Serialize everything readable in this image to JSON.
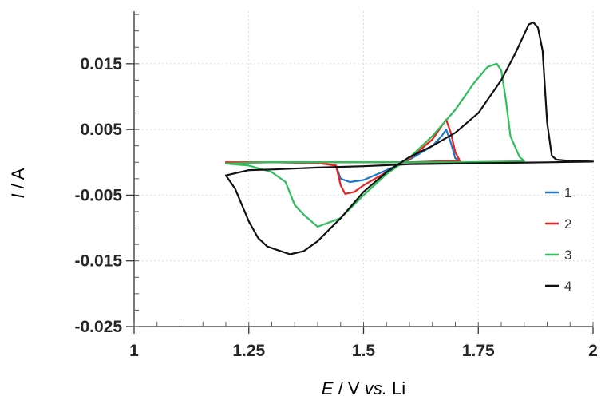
{
  "chart_data": {
    "type": "line",
    "title": "",
    "xlabel": {
      "var": "E",
      "rest": " / V ",
      "italic": "vs.",
      "tail": " Li"
    },
    "ylabel": {
      "var": "I",
      "rest": " / A"
    },
    "xlim": [
      1,
      2
    ],
    "ylim": [
      -0.025,
      0.023
    ],
    "x_ticks": [
      1,
      1.25,
      1.5,
      1.75,
      2
    ],
    "x_tick_labels": [
      "1",
      "1.25",
      "1.5",
      "1.75",
      "2"
    ],
    "y_ticks": [
      0.015,
      0.005,
      -0.005,
      -0.015,
      -0.025
    ],
    "y_tick_labels": [
      "0.015",
      "0.005",
      "-0.005",
      "-0.015",
      "-0.025"
    ],
    "grid": true,
    "legend_position": "right",
    "series": [
      {
        "name": "1",
        "color": "#1f77c9",
        "x": [
          1.2,
          1.3,
          1.4,
          1.44,
          1.45,
          1.47,
          1.5,
          1.55,
          1.6,
          1.65,
          1.67,
          1.68,
          1.69,
          1.7,
          1.71,
          1.65,
          1.6,
          1.55,
          1.5,
          1.47,
          1.45,
          1.44,
          1.4,
          1.3,
          1.2
        ],
        "y": [
          0.0,
          0.0,
          -0.0001,
          -0.0005,
          -0.0025,
          -0.003,
          -0.0027,
          -0.0012,
          0.0004,
          0.0025,
          0.004,
          0.005,
          0.003,
          0.0006,
          0.0002,
          0.0001,
          0.0,
          0.0,
          0.0,
          0.0,
          0.0,
          0.0,
          0.0,
          0.0,
          0.0
        ]
      },
      {
        "name": "2",
        "color": "#ef2020",
        "x": [
          1.2,
          1.3,
          1.4,
          1.44,
          1.45,
          1.46,
          1.48,
          1.5,
          1.55,
          1.6,
          1.65,
          1.67,
          1.68,
          1.69,
          1.7,
          1.71,
          1.65,
          1.6,
          1.5,
          1.46,
          1.4,
          1.3,
          1.2
        ],
        "y": [
          0.0,
          0.0,
          -0.0001,
          -0.0005,
          -0.0035,
          -0.0048,
          -0.0045,
          -0.0035,
          -0.0015,
          0.0005,
          0.0035,
          0.0055,
          0.0065,
          0.0045,
          0.0015,
          0.0002,
          0.0001,
          0.0,
          0.0,
          0.0,
          0.0,
          0.0,
          0.0
        ]
      },
      {
        "name": "3",
        "color": "#2cbf5a",
        "x": [
          1.2,
          1.25,
          1.3,
          1.33,
          1.35,
          1.37,
          1.4,
          1.45,
          1.5,
          1.55,
          1.6,
          1.65,
          1.7,
          1.74,
          1.77,
          1.79,
          1.8,
          1.81,
          1.82,
          1.84,
          1.85,
          1.8,
          1.7,
          1.6,
          1.5,
          1.4,
          1.3,
          1.2
        ],
        "y": [
          -0.0002,
          -0.0005,
          -0.0015,
          -0.003,
          -0.0065,
          -0.008,
          -0.0098,
          -0.0085,
          -0.005,
          -0.0018,
          0.0007,
          0.004,
          0.008,
          0.012,
          0.0145,
          0.015,
          0.014,
          0.0095,
          0.004,
          0.0008,
          0.0002,
          0.0001,
          0.0,
          0.0,
          0.0,
          0.0,
          0.0,
          -0.0002
        ]
      },
      {
        "name": "4",
        "color": "#111111",
        "x": [
          1.2,
          1.22,
          1.25,
          1.27,
          1.29,
          1.31,
          1.34,
          1.37,
          1.4,
          1.45,
          1.5,
          1.55,
          1.6,
          1.65,
          1.7,
          1.75,
          1.8,
          1.83,
          1.85,
          1.86,
          1.87,
          1.88,
          1.89,
          1.9,
          1.91,
          1.92,
          1.95,
          2.0,
          1.9,
          1.8,
          1.7,
          1.6,
          1.5,
          1.4,
          1.3,
          1.25,
          1.2
        ],
        "y": [
          -0.002,
          -0.004,
          -0.009,
          -0.0115,
          -0.0128,
          -0.0133,
          -0.014,
          -0.0135,
          -0.012,
          -0.0085,
          -0.0045,
          -0.0015,
          0.0008,
          0.0025,
          0.0045,
          0.0075,
          0.0125,
          0.0165,
          0.0195,
          0.021,
          0.0213,
          0.0205,
          0.017,
          0.006,
          0.001,
          0.0004,
          0.0002,
          0.0001,
          0.0,
          -0.0001,
          -0.0002,
          -0.0003,
          -0.0006,
          -0.0008,
          -0.0011,
          -0.0012,
          -0.002
        ]
      }
    ]
  }
}
